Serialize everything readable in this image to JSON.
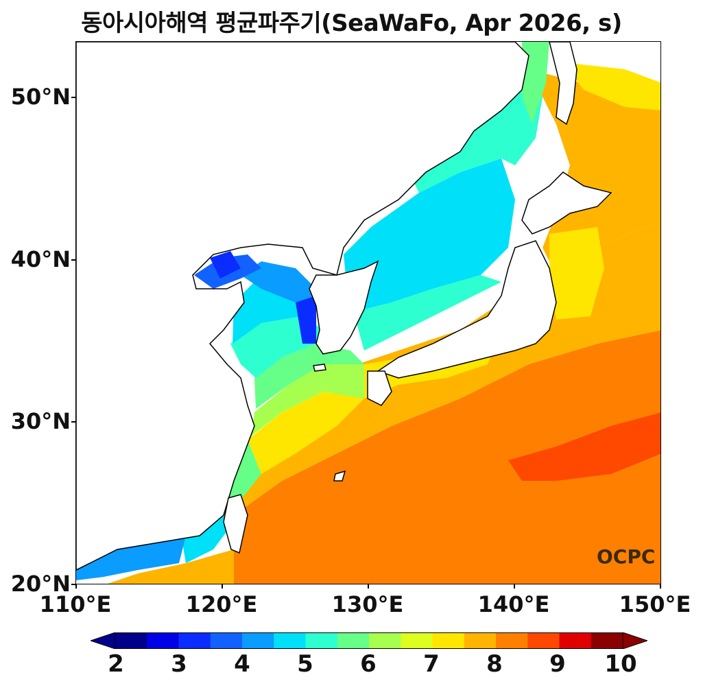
{
  "title": "동아시아해역 평균파주기(SeaWaFo, Apr 2026, s)",
  "logo_text": "OCPC",
  "lat_labels": [
    "50°N",
    "40°N",
    "30°N",
    "20°N"
  ],
  "lon_labels": [
    "110°E",
    "120°E",
    "130°E",
    "140°E",
    "150°E"
  ],
  "colorbar": {
    "tick_labels": [
      "2",
      "3",
      "4",
      "5",
      "6",
      "7",
      "8",
      "9",
      "10"
    ],
    "colors": [
      "#00008b",
      "#0000e6",
      "#0a2cff",
      "#1262ff",
      "#0a9cff",
      "#00e0f8",
      "#2dffd0",
      "#66ff88",
      "#a6ff4e",
      "#dcff20",
      "#ffe600",
      "#ffb400",
      "#ff8000",
      "#ff4800",
      "#e00000",
      "#8b0000"
    ],
    "min_extend": "#00008b",
    "max_extend": "#8b0000"
  },
  "map": {
    "lon_range": [
      110,
      150
    ],
    "lat_range": [
      20,
      53.5
    ],
    "variable": "mean wave period",
    "units": "s"
  }
}
